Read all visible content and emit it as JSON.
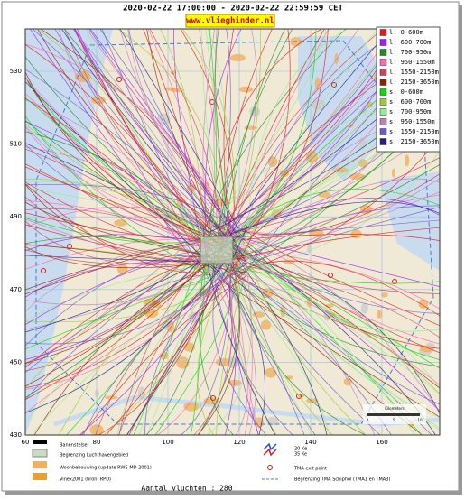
{
  "header": {
    "title": "2020-02-22 17:00:00 - 2020-02-22 22:59:59 CET",
    "logo": "www.vlieghinder.nl"
  },
  "map": {
    "xticks": [
      60,
      80,
      100,
      120,
      140,
      160
    ],
    "yticks": [
      430,
      450,
      470,
      490,
      510,
      530
    ],
    "scale": {
      "title": "Kilometers",
      "ticks": [
        "0",
        "5",
        "10"
      ]
    }
  },
  "legend": [
    {
      "label": "l: 0-600m",
      "color": "#e41a1c"
    },
    {
      "label": "l: 600-700m",
      "color": "#a020f0"
    },
    {
      "label": "l: 700-950m",
      "color": "#228b22"
    },
    {
      "label": "l: 950-1550m",
      "color": "#ff69b4"
    },
    {
      "label": "l: 1550-2150m",
      "color": "#d04060"
    },
    {
      "label": "l: 2150-3650m",
      "color": "#8b2500"
    },
    {
      "label": "s: 0-600m",
      "color": "#00dd00"
    },
    {
      "label": "s: 600-700m",
      "color": "#9acd32"
    },
    {
      "label": "s: 700-950m",
      "color": "#90ee90"
    },
    {
      "label": "s: 950-1550m",
      "color": "#c080c0"
    },
    {
      "label": "s: 1550-2150m",
      "color": "#6a5acd"
    },
    {
      "label": "s: 2150-3650m",
      "color": "#202080"
    }
  ],
  "key": {
    "runways": "Banenstelsel",
    "airport_boundary": "Begrenzing Luchthavengebied",
    "housing": "Woonbebouwing (update RWS-MD 2001)",
    "vinex": "Vinex2001 (bron: RPD)",
    "noise_20": "20 Ke",
    "noise_35": "35 Ke",
    "exit_point": "TMA exit point",
    "tma_boundary": "Begrenzing TMA Schiphol  (TMA1 en TMA3)"
  },
  "footer": "Aantal vluchten : 280"
}
